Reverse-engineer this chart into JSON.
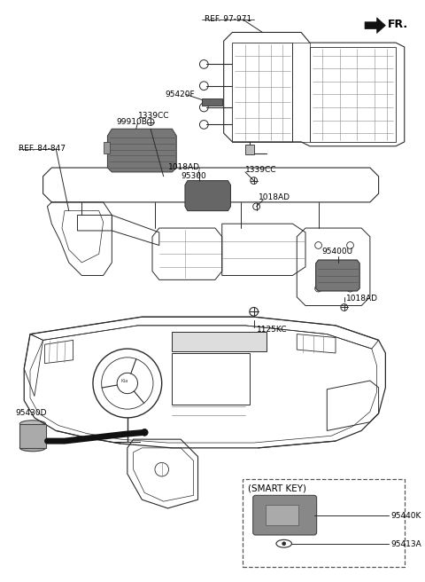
{
  "bg_color": "#ffffff",
  "line_color": "#2a2a2a",
  "label_color": "#000000",
  "gray_part": "#888888",
  "dark_part": "#555555",
  "light_part": "#bbbbbb",
  "labels": {
    "ref_97971": "REF. 97-971",
    "fr": "FR.",
    "ref_84847": "REF. 84-847",
    "l1339cc_a": "1339CC",
    "l99910b": "99910B",
    "l95420f": "95420F",
    "l1339cc_b": "1339CC",
    "l1018ad_a": "1018AD",
    "l95300": "95300",
    "l1018ad_b": "1018AD",
    "l95400u": "95400U",
    "l1018ad_c": "1018AD",
    "l1125kc": "1125KC",
    "l95430d": "95430D",
    "smart_key_label": "(SMART KEY)",
    "l95440k": "95440K",
    "l95413a": "95413A"
  }
}
